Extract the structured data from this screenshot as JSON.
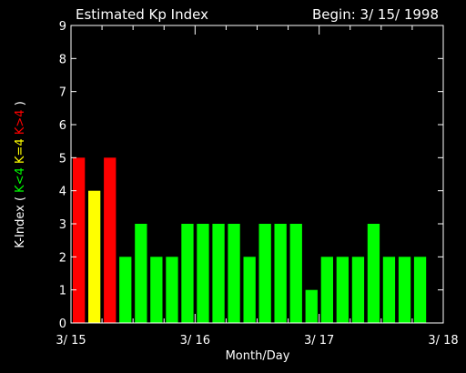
{
  "chart_data": {
    "type": "bar",
    "title": "Estimated Kp Index",
    "begin_label": "Begin: 3/ 15/ 1998",
    "xlabel": "Month/Day",
    "ylabel": {
      "prefix": "K-Index ( ",
      "parts": [
        {
          "text": "K<4",
          "color": "#00ff00"
        },
        {
          "text": "K=4",
          "color": "#ffff00"
        },
        {
          "text": "K>4",
          "color": "#ff0000"
        }
      ],
      "suffix": " )"
    },
    "ylim": [
      0,
      9
    ],
    "yticks": [
      "0",
      "1",
      "2",
      "3",
      "4",
      "5",
      "6",
      "7",
      "8",
      "9"
    ],
    "xlim_days": [
      0,
      3
    ],
    "xticks": [
      {
        "day": 0,
        "label": "3/ 15"
      },
      {
        "day": 1,
        "label": "3/ 16"
      },
      {
        "day": 2,
        "label": "3/ 17"
      },
      {
        "day": 3,
        "label": "3/ 18"
      }
    ],
    "bar_interval_hours": 3,
    "values": [
      5,
      4,
      5,
      2,
      3,
      2,
      2,
      3,
      3,
      3,
      3,
      2,
      3,
      3,
      3,
      1,
      2,
      2,
      2,
      3,
      2,
      2,
      2
    ],
    "colors": {
      "low": "#00ff00",
      "mid": "#ffff00",
      "high": "#ff0000",
      "axis": "#ffffff",
      "background": "#000000"
    }
  }
}
